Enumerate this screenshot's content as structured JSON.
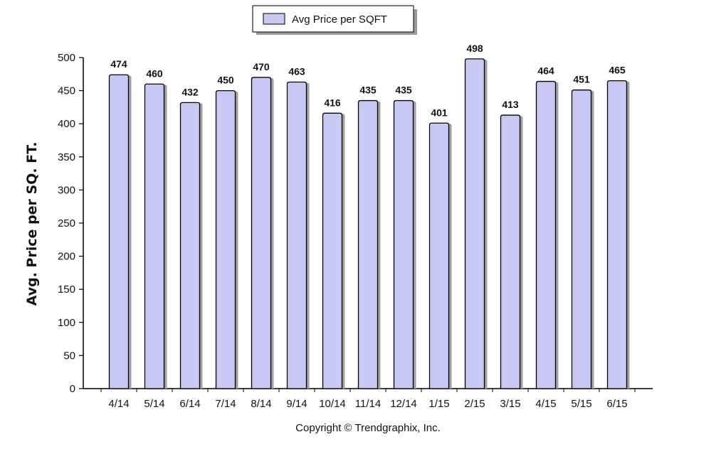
{
  "chart_data": {
    "type": "bar",
    "categories": [
      "4/14",
      "5/14",
      "6/14",
      "7/14",
      "8/14",
      "9/14",
      "10/14",
      "11/14",
      "12/14",
      "1/15",
      "2/15",
      "3/15",
      "4/15",
      "5/15",
      "6/15"
    ],
    "series": [
      {
        "name": "Avg Price per SQFT",
        "values": [
          474,
          460,
          432,
          450,
          470,
          463,
          416,
          435,
          435,
          401,
          498,
          413,
          464,
          451,
          465
        ]
      }
    ],
    "ylabel": "Avg. Price per SQ. FT.",
    "xlabel": "",
    "ylim": [
      0,
      500
    ],
    "yticks": [
      0,
      50,
      100,
      150,
      200,
      250,
      300,
      350,
      400,
      450,
      500
    ],
    "legend_position": "top-center",
    "data_labels": true,
    "grid": false
  },
  "footer": {
    "copyright": "Copyright © Trendgraphix, Inc."
  },
  "colors": {
    "bar_fill": "#c8c8f5",
    "bar_stroke": "#000000",
    "shadow": "#a0a0a0"
  }
}
